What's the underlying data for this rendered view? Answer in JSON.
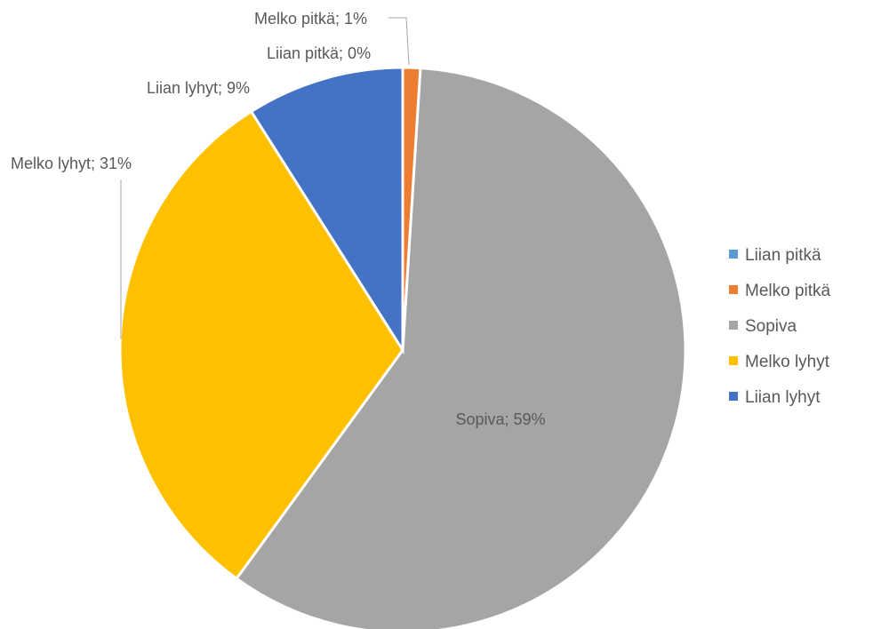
{
  "chart_data": {
    "type": "pie",
    "title": "",
    "slices": [
      {
        "label": "Liian pitkä",
        "value": 0,
        "value_label": "0%",
        "color": "#5B9BD5"
      },
      {
        "label": "Melko pitkä",
        "value": 1,
        "value_label": "1%",
        "color": "#ED7D31"
      },
      {
        "label": "Sopiva",
        "value": 59,
        "value_label": "59%",
        "color": "#A5A5A5"
      },
      {
        "label": "Melko lyhyt",
        "value": 31,
        "value_label": "31%",
        "color": "#FFC000"
      },
      {
        "label": "Liian lyhyt",
        "value": 9,
        "value_label": "9%",
        "color": "#4472C4"
      }
    ],
    "legend_position": "right",
    "data_labels": [
      "Liian pitkä; 0%",
      "Melko pitkä; 1%",
      "Sopiva; 59%",
      "Melko lyhyt; 31%",
      "Liian lyhyt; 9%"
    ]
  }
}
